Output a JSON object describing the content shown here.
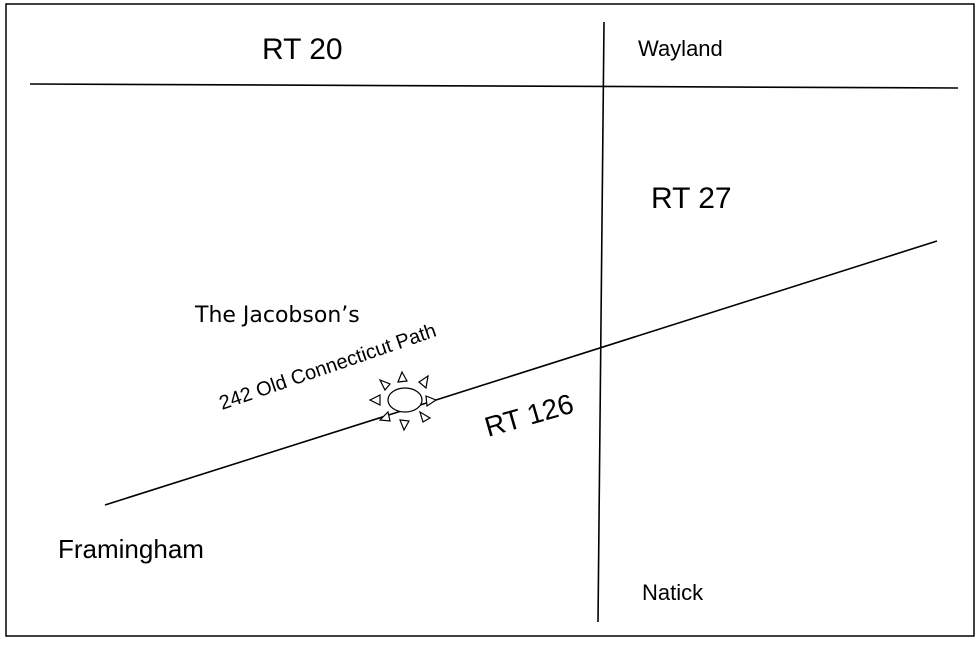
{
  "roads": {
    "rt20": "RT 20",
    "rt27": "RT 27",
    "rt126": "RT 126"
  },
  "towns": {
    "wayland": "Wayland",
    "framingham": "Framingham",
    "natick": "Natick"
  },
  "destination": {
    "name": "The Jacobson’s",
    "address": "242 Old Connecticut Path"
  }
}
